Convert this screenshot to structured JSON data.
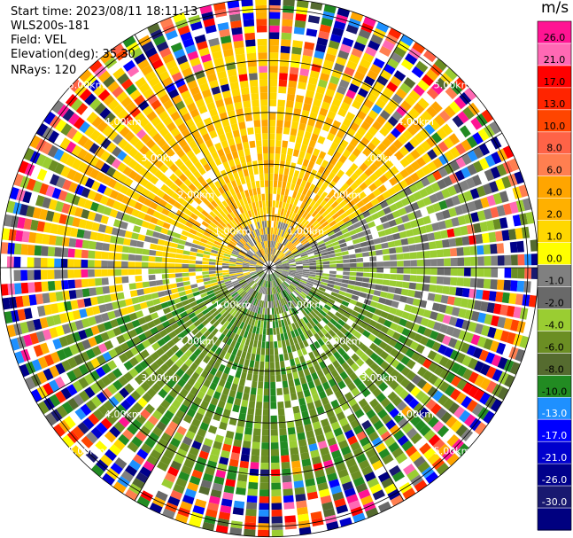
{
  "header": {
    "start_time": "Start time: 2023/08/11 18:11:13",
    "instrument": "WLS200s-181",
    "field": "Field: VEL",
    "elevation": "Elevation(deg): 35.30",
    "nrays": "NRays: 120"
  },
  "chart_data": {
    "type": "ppi_radar",
    "field": "VEL",
    "units": "m/s",
    "n_rays": 120,
    "elevation_deg": 35.3,
    "range_rings_km": [
      1.0,
      2.0,
      3.0,
      4.0,
      5.0
    ],
    "range_ring_labels": [
      "1.00km",
      "2.00km",
      "3.00km",
      "4.00km",
      "5.00km"
    ],
    "max_range_km": 5.2,
    "colorbar": {
      "title": "m/s",
      "ticks": [
        "26.0",
        "21.0",
        "17.0",
        "13.0",
        "10.0",
        "8.0",
        "6.0",
        "4.0",
        "2.0",
        "1.0",
        "0.0",
        "-1.0",
        "-2.0",
        "-4.0",
        "-6.0",
        "-8.0",
        "-10.0",
        "-13.0",
        "-17.0",
        "-21.0",
        "-26.0",
        "-30.0"
      ],
      "colors": [
        "#ff1493",
        "#ff69b4",
        "#ff0000",
        "#ff2400",
        "#ff4500",
        "#ff6347",
        "#ff7f50",
        "#ffa500",
        "#ffb000",
        "#ffd700",
        "#ffff00",
        "#808080",
        "#696969",
        "#9acd32",
        "#6b8e23",
        "#556b2f",
        "#228b22",
        "#1e90ff",
        "#0000ff",
        "#0000cd",
        "#00008b",
        "#191970",
        "#000080"
      ]
    },
    "dominant_pattern": {
      "northern_sector": "positive 1 to 6 m/s (yellow/orange)",
      "southern_sector": "negative -2 to -6 m/s (green)",
      "outer_ring": "noisy, mixed colors"
    }
  }
}
